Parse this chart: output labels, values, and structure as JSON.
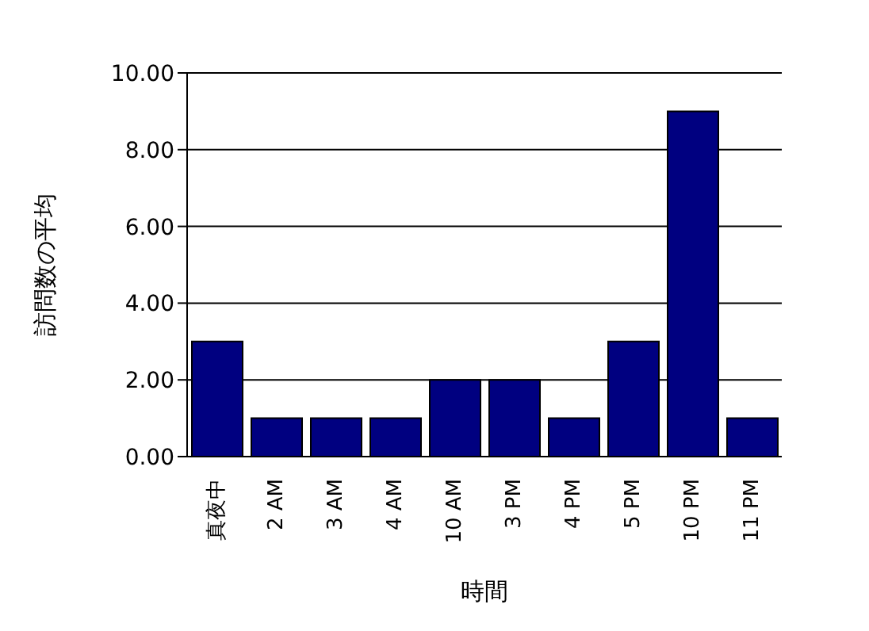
{
  "chart_data": {
    "type": "bar",
    "xlabel": "時間",
    "ylabel": "訪問数の平均",
    "categories": [
      "真夜中",
      "2 AM",
      "3 AM",
      "4 AM",
      "10 AM",
      "3 PM",
      "4 PM",
      "5 PM",
      "10 PM",
      "11 PM"
    ],
    "values": [
      3,
      1,
      1,
      1,
      2,
      2,
      1,
      3,
      9,
      1
    ],
    "color": "#000080",
    "ylim": [
      0,
      10
    ],
    "yticks": [
      {
        "value": 0,
        "label": "0.00"
      },
      {
        "value": 2,
        "label": "2.00"
      },
      {
        "value": 4,
        "label": "4.00"
      },
      {
        "value": 6,
        "label": "6.00"
      },
      {
        "value": 8,
        "label": "8.00"
      },
      {
        "value": 10,
        "label": "10.00"
      }
    ],
    "grid": "y"
  }
}
